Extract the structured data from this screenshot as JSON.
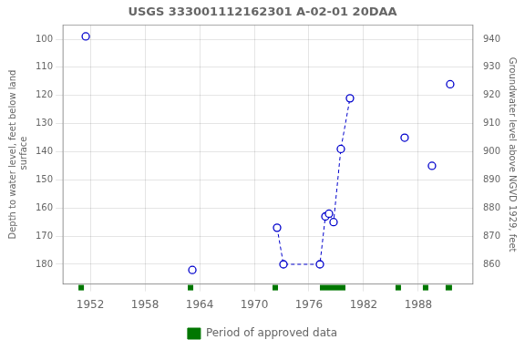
{
  "chart_data": {
    "type": "scatter",
    "title": "USGS 333001112162301 A-02-01 20DAA",
    "y_label": "Depth to water level, feet below land\n surface",
    "y2_label": "Groundwater level above NGVD 1929, feet",
    "xlim": [
      1949,
      1994
    ],
    "xticks": [
      1952,
      1958,
      1964,
      1970,
      1976,
      1982,
      1988
    ],
    "ylim": [
      187,
      95
    ],
    "yticks": [
      100,
      110,
      120,
      130,
      140,
      150,
      160,
      170,
      180
    ],
    "y2lim": [
      853,
      945
    ],
    "y2ticks": [
      860,
      870,
      880,
      890,
      900,
      910,
      920,
      930,
      940
    ],
    "grid": true,
    "legend": "bottom",
    "series": [
      {
        "type": "line",
        "line_style": "dashed",
        "color": "#0000cc",
        "x": [
          1972.5,
          1973.2,
          1977.2,
          1977.8,
          1978.2,
          1978.7,
          1979.5,
          1980.5
        ],
        "values": [
          167,
          180,
          180,
          163,
          162,
          165,
          139,
          121
        ]
      },
      {
        "type": "scatter",
        "marker": "circle",
        "color": "#0000cc",
        "x": [
          1951.5,
          1963.2,
          1972.5,
          1973.2,
          1977.2,
          1977.8,
          1978.2,
          1978.7,
          1979.5,
          1980.5,
          1986.5,
          1989.5,
          1991.5
        ],
        "values": [
          99,
          182,
          167,
          180,
          180,
          163,
          162,
          165,
          139,
          121,
          135,
          145,
          116
        ]
      },
      {
        "name": "Period of approved data",
        "type": "bar",
        "color": "#007700",
        "x": [
          1950.7,
          1962.7,
          1972.0,
          1977.2,
          1985.5,
          1988.5,
          1991.0
        ],
        "widths": [
          0.6,
          0.6,
          0.6,
          2.8,
          0.6,
          0.6,
          0.7
        ]
      }
    ]
  }
}
